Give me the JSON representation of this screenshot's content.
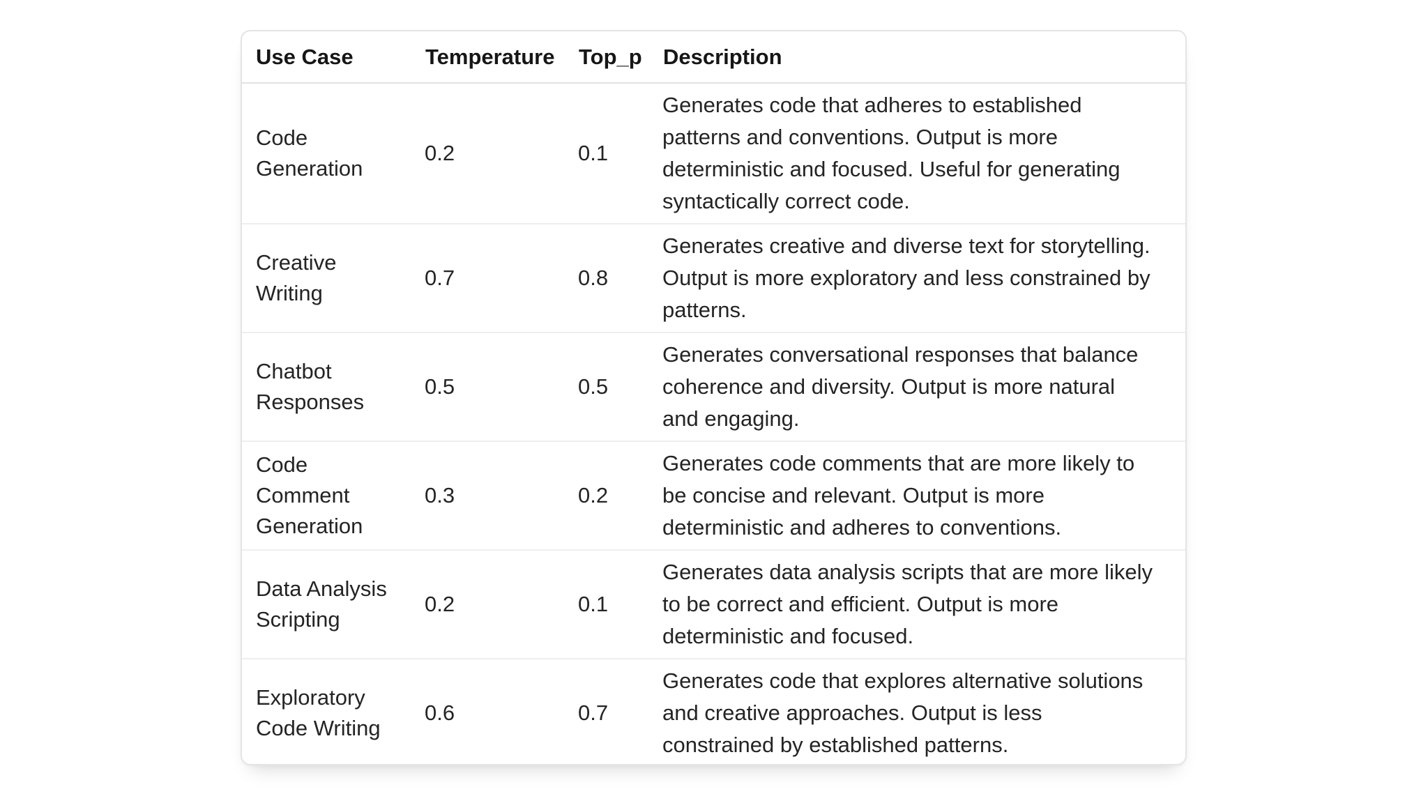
{
  "table": {
    "columns": [
      "Use Case",
      "Temperature",
      "Top_p",
      "Description"
    ],
    "rows": [
      {
        "use_case": "Code Generation",
        "use_case_lines": [
          "Code",
          "Generation"
        ],
        "temperature": "0.2",
        "top_p": "0.1",
        "description": "Generates code that adheres to established patterns and conventions. Output is more deterministic and focused. Useful for generating syntactically correct code.",
        "description_lines": [
          "Generates code that adheres to established",
          "patterns and conventions. Output is more",
          "deterministic and focused. Useful for generating",
          "syntactically correct code."
        ]
      },
      {
        "use_case": "Creative Writing",
        "use_case_lines": [
          "Creative",
          "Writing"
        ],
        "temperature": "0.7",
        "top_p": "0.8",
        "description": "Generates creative and diverse text for storytelling. Output is more exploratory and less constrained by patterns.",
        "description_lines": [
          "Generates creative and diverse text for storytelling.",
          "Output is more exploratory and less constrained by",
          "patterns."
        ]
      },
      {
        "use_case": "Chatbot Responses",
        "use_case_lines": [
          "Chatbot",
          "Responses"
        ],
        "temperature": "0.5",
        "top_p": "0.5",
        "description": "Generates conversational responses that balance coherence and diversity. Output is more natural and engaging.",
        "description_lines": [
          "Generates conversational responses that balance",
          "coherence and diversity. Output is more natural",
          "and engaging."
        ]
      },
      {
        "use_case": "Code Comment Generation",
        "use_case_lines": [
          "Code",
          "Comment",
          "Generation"
        ],
        "temperature": "0.3",
        "top_p": "0.2",
        "description": "Generates code comments that are more likely to be concise and relevant. Output is more deterministic and adheres to conventions.",
        "description_lines": [
          "Generates code comments that are more likely to",
          "be concise and relevant. Output is more",
          "deterministic and adheres to conventions."
        ]
      },
      {
        "use_case": "Data Analysis Scripting",
        "use_case_lines": [
          "Data Analysis",
          "Scripting"
        ],
        "temperature": "0.2",
        "top_p": "0.1",
        "description": "Generates data analysis scripts that are more likely to be correct and efficient. Output is more deterministic and focused.",
        "description_lines": [
          "Generates data analysis scripts that are more likely",
          "to be correct and efficient. Output is more",
          "deterministic and focused."
        ]
      },
      {
        "use_case": "Exploratory Code Writing",
        "use_case_lines": [
          "Exploratory",
          "Code Writing"
        ],
        "temperature": "0.6",
        "top_p": "0.7",
        "description": "Generates code that explores alternative solutions and creative approaches. Output is less constrained by established patterns.",
        "description_lines": [
          "Generates code that explores alternative solutions",
          "and creative approaches. Output is less",
          "constrained by established patterns."
        ]
      }
    ]
  },
  "colors": {
    "background": "#ffffff",
    "card_border": "#e4e4e4",
    "row_divider": "#eeeeee",
    "header_text": "#161616",
    "body_text": "#242424"
  },
  "chart_data": {
    "type": "table",
    "columns": [
      "Use Case",
      "Temperature",
      "Top_p",
      "Description"
    ],
    "rows": [
      [
        "Code Generation",
        0.2,
        0.1,
        "Generates code that adheres to established patterns and conventions. Output is more deterministic and focused. Useful for generating syntactically correct code."
      ],
      [
        "Creative Writing",
        0.7,
        0.8,
        "Generates creative and diverse text for storytelling. Output is more exploratory and less constrained by patterns."
      ],
      [
        "Chatbot Responses",
        0.5,
        0.5,
        "Generates conversational responses that balance coherence and diversity. Output is more natural and engaging."
      ],
      [
        "Code Comment Generation",
        0.3,
        0.2,
        "Generates code comments that are more likely to be concise and relevant. Output is more deterministic and adheres to conventions."
      ],
      [
        "Data Analysis Scripting",
        0.2,
        0.1,
        "Generates data analysis scripts that are more likely to be correct and efficient. Output is more deterministic and focused."
      ],
      [
        "Exploratory Code Writing",
        0.6,
        0.7,
        "Generates code that explores alternative solutions and creative approaches. Output is less constrained by established patterns."
      ]
    ]
  }
}
